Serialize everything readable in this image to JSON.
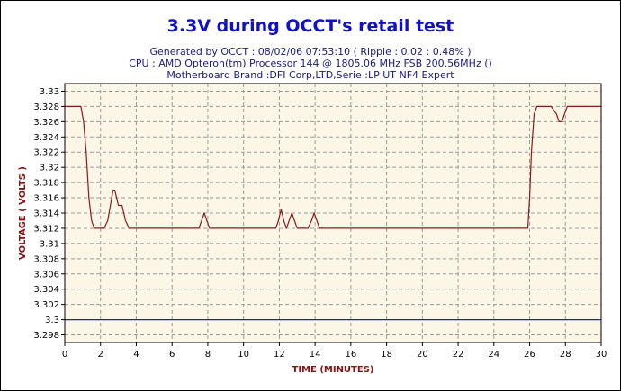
{
  "chart_data": {
    "type": "line",
    "title": "3.3V during OCCT's retail test",
    "subtitle_lines": [
      "Generated by OCCT : 08/02/06 07:53:10 ( Ripple : 0.02 : 0.48% )",
      "CPU : AMD Opteron(tm) Processor 144     @ 1805.06 MHz FSB 200.56MHz ()",
      "Motherboard Brand :DFI Corp,LTD,Serie :LP UT NF4 Expert"
    ],
    "xlabel": "TIME (MINUTES)",
    "ylabel": "VOLTAGE ( VOLTS )",
    "xlim": [
      0,
      30
    ],
    "ylim": [
      3.297,
      3.331
    ],
    "xticks": [
      "0",
      "2",
      "4",
      "6",
      "8",
      "10",
      "12",
      "14",
      "16",
      "18",
      "20",
      "22",
      "24",
      "26",
      "28",
      "30"
    ],
    "yticks": [
      "3.298",
      "3.3",
      "3.302",
      "3.304",
      "3.306",
      "3.308",
      "3.31",
      "3.312",
      "3.314",
      "3.316",
      "3.318",
      "3.32",
      "3.322",
      "3.324",
      "3.326",
      "3.328",
      "3.33"
    ],
    "grid": true,
    "series": [
      {
        "color": "#8b1a1a",
        "x": [
          0,
          0.9,
          1.05,
          1.2,
          1.35,
          1.5,
          1.65,
          1.8,
          2.2,
          2.4,
          2.55,
          2.7,
          2.8,
          2.9,
          3.0,
          3.2,
          3.4,
          3.6,
          3.8,
          4.5,
          6,
          7.5,
          7.65,
          7.8,
          7.95,
          8.1,
          8.3,
          10,
          11.8,
          11.95,
          12.1,
          12.25,
          12.4,
          12.55,
          12.7,
          12.85,
          13.0,
          13.2,
          13.6,
          13.8,
          13.95,
          14.1,
          14.25,
          14.4,
          16,
          20,
          24,
          25.9,
          26.0,
          26.1,
          26.25,
          26.4,
          26.6,
          27.2,
          27.5,
          27.65,
          27.8,
          27.95,
          28.1,
          28.5,
          30
        ],
        "y": [
          3.328,
          3.328,
          3.326,
          3.322,
          3.316,
          3.313,
          3.312,
          3.312,
          3.312,
          3.313,
          3.315,
          3.317,
          3.317,
          3.316,
          3.315,
          3.315,
          3.313,
          3.312,
          3.312,
          3.312,
          3.312,
          3.312,
          3.313,
          3.314,
          3.313,
          3.312,
          3.312,
          3.312,
          3.312,
          3.313,
          3.3145,
          3.313,
          3.312,
          3.313,
          3.314,
          3.313,
          3.312,
          3.312,
          3.312,
          3.313,
          3.314,
          3.313,
          3.312,
          3.312,
          3.312,
          3.312,
          3.312,
          3.312,
          3.316,
          3.322,
          3.327,
          3.328,
          3.328,
          3.328,
          3.327,
          3.326,
          3.326,
          3.327,
          3.328,
          3.328,
          3.328
        ]
      },
      {
        "color": "#2020c0",
        "x": [
          0,
          30
        ],
        "y": [
          3.3,
          3.3
        ]
      }
    ]
  }
}
